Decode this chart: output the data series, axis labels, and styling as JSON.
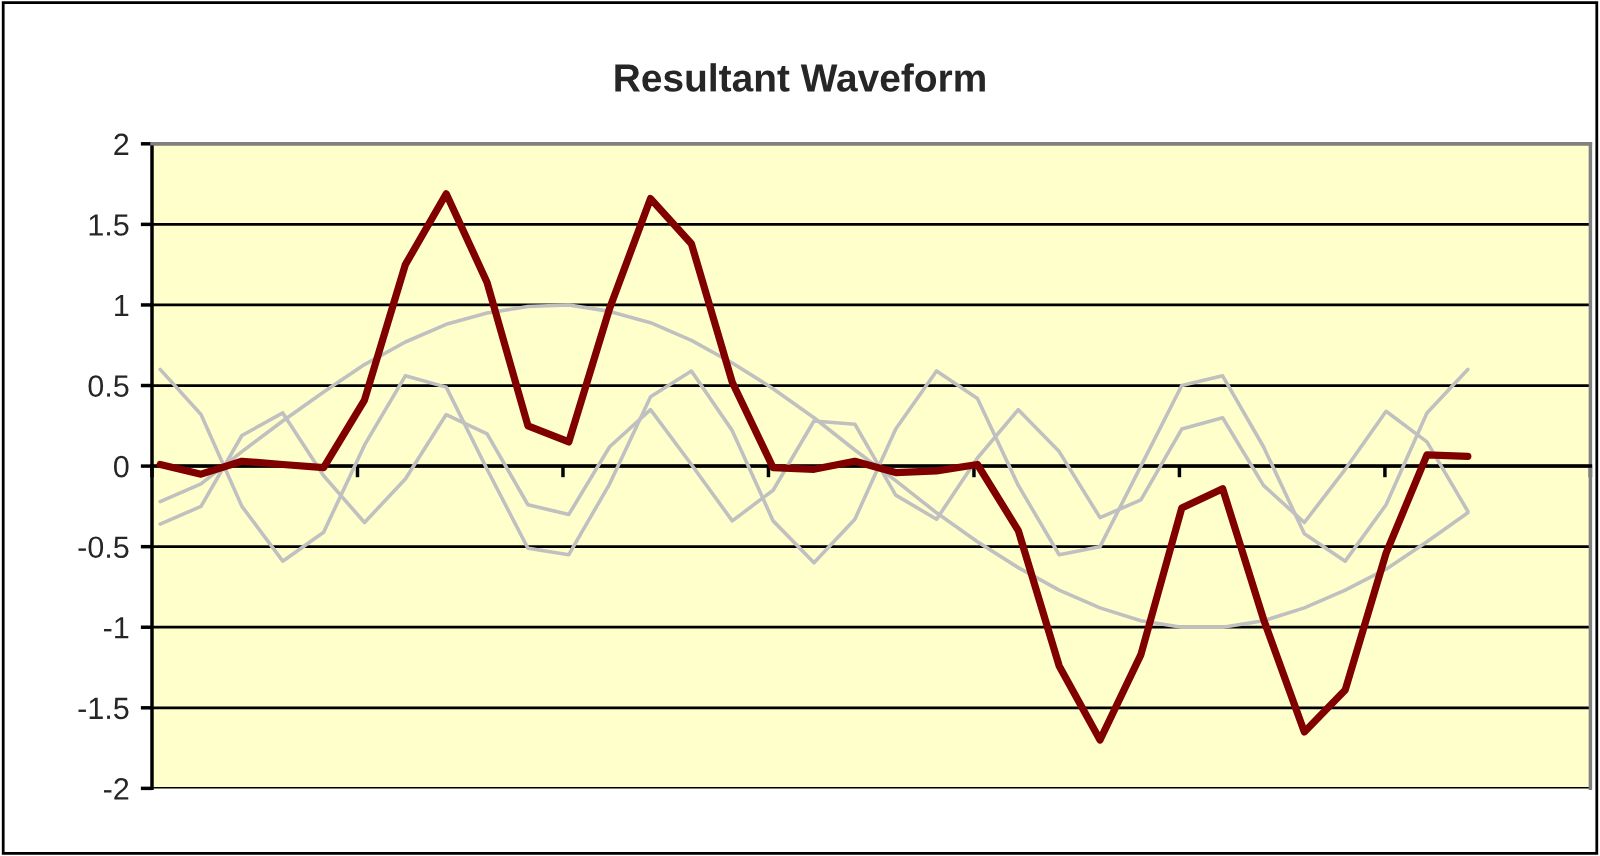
{
  "chart_data": {
    "type": "line",
    "title": "Resultant Waveform",
    "categories": [
      null,
      null,
      null,
      null,
      null,
      null,
      null,
      null,
      null,
      null,
      null,
      null,
      null,
      null,
      null,
      null,
      null,
      null,
      null,
      null,
      null,
      null,
      null,
      null,
      null,
      null,
      null,
      null,
      null,
      null,
      null,
      null,
      null,
      null,
      null,
      null
    ],
    "series": [
      {
        "color": "#c0c0c0",
        "values": [
          -0.22,
          -0.11,
          0.09,
          0.28,
          0.46,
          0.63,
          0.77,
          0.88,
          0.95,
          0.99,
          1.0,
          0.96,
          0.89,
          0.78,
          0.64,
          0.48,
          0.3,
          0.1,
          -0.09,
          -0.29,
          -0.47,
          -0.63,
          -0.77,
          -0.88,
          -0.96,
          -1.0,
          -1.0,
          -0.96,
          -0.88,
          -0.77,
          -0.64,
          -0.47,
          -0.29,
          null,
          null,
          null
        ]
      },
      {
        "color": "#c0c0c0",
        "values": [
          0.6,
          0.32,
          -0.25,
          -0.59,
          -0.41,
          0.13,
          0.56,
          0.49,
          -0.02,
          -0.51,
          -0.55,
          -0.11,
          0.43,
          0.59,
          0.22,
          -0.34,
          -0.6,
          -0.33,
          0.23,
          0.59,
          0.42,
          -0.12,
          -0.55,
          -0.5,
          0.0,
          0.5,
          0.56,
          0.12,
          -0.42,
          -0.59,
          -0.24,
          0.33,
          0.6,
          null,
          null,
          null
        ]
      },
      {
        "color": "#c0c0c0",
        "values": [
          -0.36,
          -0.25,
          0.19,
          0.33,
          -0.06,
          -0.35,
          -0.08,
          0.32,
          0.2,
          -0.24,
          -0.3,
          0.12,
          0.35,
          0.01,
          -0.34,
          -0.15,
          0.28,
          0.26,
          -0.18,
          -0.33,
          0.05,
          0.35,
          0.09,
          -0.32,
          -0.21,
          0.23,
          0.3,
          -0.12,
          -0.35,
          -0.02,
          0.34,
          0.15,
          -0.28,
          null,
          null,
          null
        ]
      },
      {
        "color": "#800000",
        "values": [
          0.01,
          -0.05,
          0.03,
          0.01,
          -0.01,
          0.41,
          1.25,
          1.69,
          1.14,
          0.25,
          0.15,
          0.98,
          1.66,
          1.38,
          0.52,
          -0.01,
          -0.02,
          0.03,
          -0.04,
          -0.03,
          0.01,
          -0.4,
          -1.24,
          -1.7,
          -1.17,
          -0.26,
          -0.14,
          -0.95,
          -1.65,
          -1.39,
          -0.54,
          0.07,
          0.06,
          null,
          null,
          null
        ]
      }
    ],
    "ylim": [
      -2,
      2
    ],
    "yticks": [
      -2,
      -1.5,
      -1,
      -0.5,
      0,
      0.5,
      1,
      1.5,
      2
    ],
    "grid": "y",
    "legend": false,
    "tick_labels": "y",
    "marker": "none",
    "line_style": "solid"
  }
}
